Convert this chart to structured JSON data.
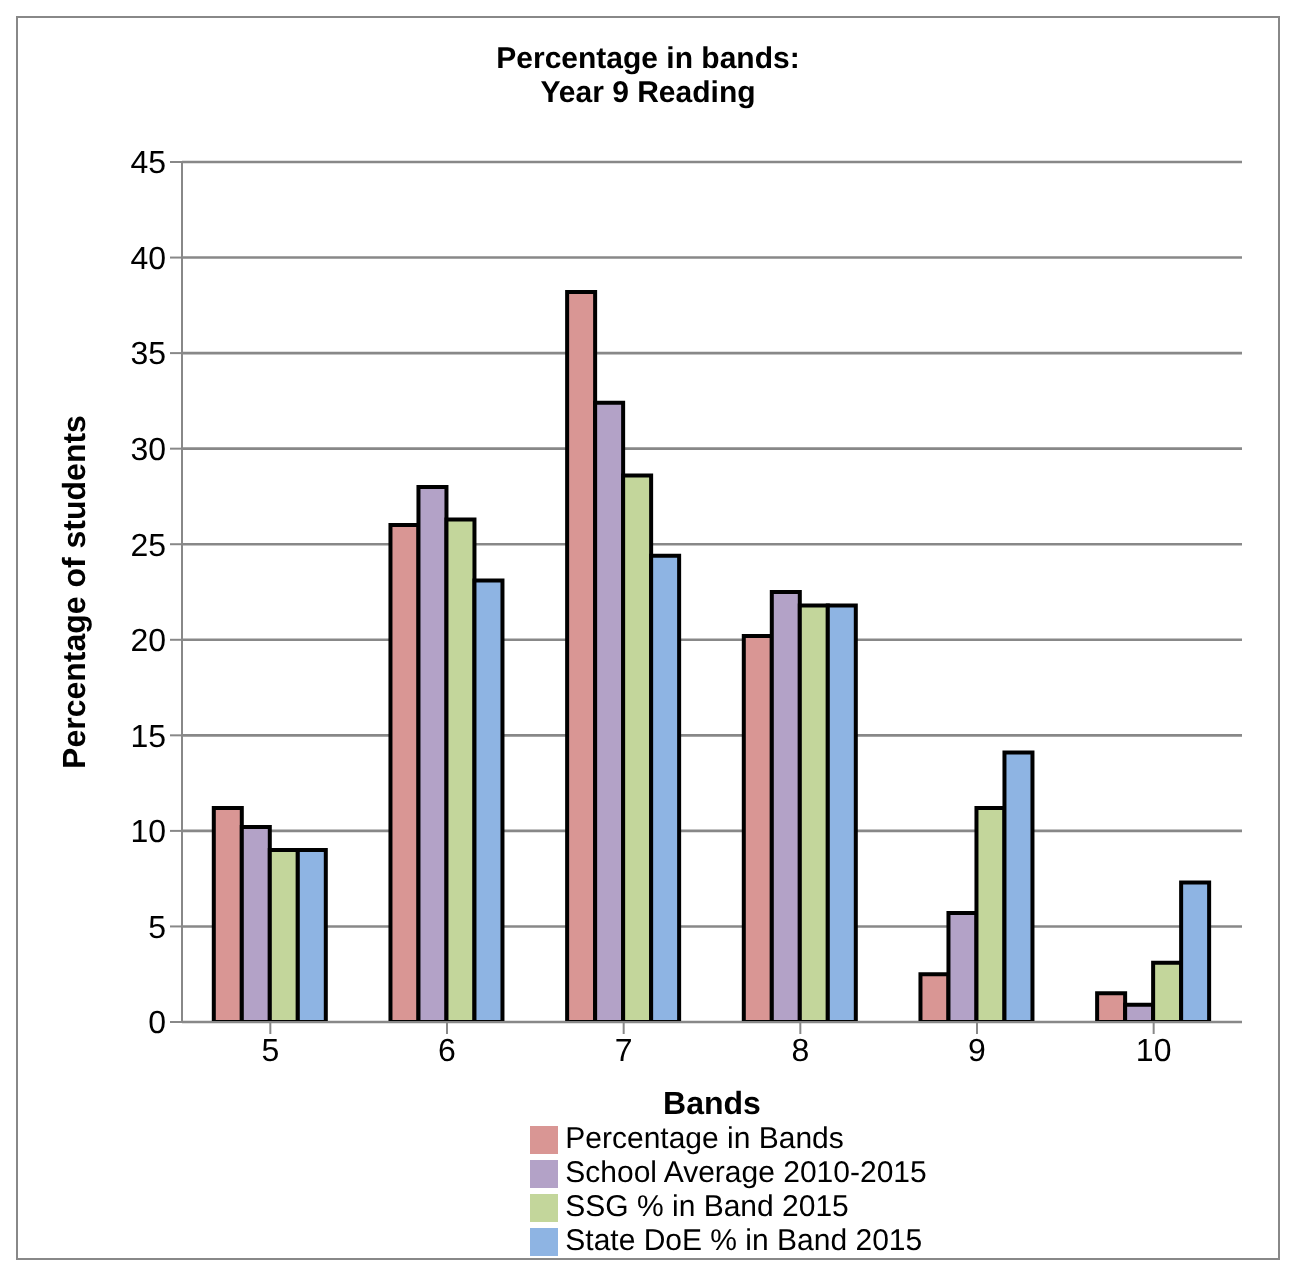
{
  "chart_data": {
    "type": "bar",
    "title": "Percentage in bands:\nYear 9 Reading",
    "xlabel": "Bands",
    "ylabel": "Percentage of students",
    "categories": [
      "5",
      "6",
      "7",
      "8",
      "9",
      "10"
    ],
    "series": [
      {
        "name": "Percentage in Bands",
        "color": "#d99694",
        "values": [
          11.2,
          26,
          38.2,
          20.2,
          2.5,
          1.5
        ]
      },
      {
        "name": "School Average 2010-2015",
        "color": "#b3a2c7",
        "values": [
          10.2,
          28,
          32.4,
          22.5,
          5.7,
          0.9
        ]
      },
      {
        "name": "SSG % in Band 2015",
        "color": "#c3d69b",
        "values": [
          9,
          26.3,
          28.6,
          21.8,
          11.2,
          3.1
        ]
      },
      {
        "name": "State DoE % in Band 2015",
        "color": "#8eb4e3",
        "values": [
          9,
          23.1,
          24.4,
          21.8,
          14.1,
          7.3
        ]
      }
    ],
    "ylim": [
      0,
      45
    ],
    "yticks": [
      0,
      5,
      10,
      15,
      20,
      25,
      30,
      35,
      40,
      45
    ],
    "grid": "y",
    "legend": "bottom"
  }
}
